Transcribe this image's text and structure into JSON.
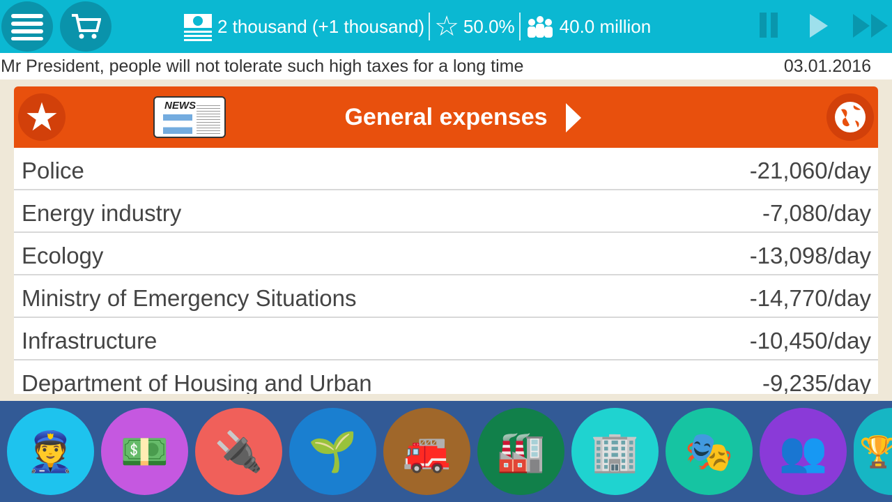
{
  "topbar": {
    "money": "2 thousand (+1 thousand)",
    "rating": "50.0%",
    "population": "40.0 million"
  },
  "news": {
    "message": "Mr President, people will not tolerate such high taxes for a long time",
    "date": "03.01.2016"
  },
  "panel": {
    "title": "General expenses",
    "news_badge": "NEWS",
    "rows": [
      {
        "name": "Police",
        "value": "-21,060/day"
      },
      {
        "name": "Energy industry",
        "value": "-7,080/day"
      },
      {
        "name": "Ecology",
        "value": "-13,098/day"
      },
      {
        "name": "Ministry of Emergency Situations",
        "value": "-14,770/day"
      },
      {
        "name": "Infrastructure",
        "value": "-10,450/day"
      },
      {
        "name": "Department of Housing and Urban",
        "value": "-9,235/day"
      }
    ]
  },
  "categories": [
    {
      "icon": "police-icon",
      "color": "#1ec3ee"
    },
    {
      "icon": "finance-icon",
      "color": "#c558e0"
    },
    {
      "icon": "energy-plug-icon",
      "color": "#f0605a"
    },
    {
      "icon": "ecology-plant-icon",
      "color": "#1a7fd0"
    },
    {
      "icon": "fire-station-icon",
      "color": "#a0672a"
    },
    {
      "icon": "factory-icon",
      "color": "#11804a"
    },
    {
      "icon": "housing-icon",
      "color": "#1fd3d0"
    },
    {
      "icon": "theatre-icon",
      "color": "#16c4a2"
    },
    {
      "icon": "people-icon",
      "color": "#8a3ad8"
    },
    {
      "icon": "trophy-icon",
      "color": "#16b6c4"
    }
  ]
}
